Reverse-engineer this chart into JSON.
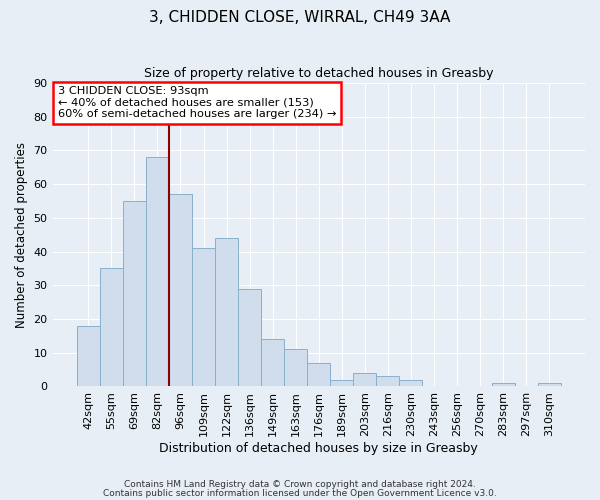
{
  "title": "3, CHIDDEN CLOSE, WIRRAL, CH49 3AA",
  "subtitle": "Size of property relative to detached houses in Greasby",
  "xlabel": "Distribution of detached houses by size in Greasby",
  "ylabel": "Number of detached properties",
  "bar_labels": [
    "42sqm",
    "55sqm",
    "69sqm",
    "82sqm",
    "96sqm",
    "109sqm",
    "122sqm",
    "136sqm",
    "149sqm",
    "163sqm",
    "176sqm",
    "189sqm",
    "203sqm",
    "216sqm",
    "230sqm",
    "243sqm",
    "256sqm",
    "270sqm",
    "283sqm",
    "297sqm",
    "310sqm"
  ],
  "bar_values": [
    18,
    35,
    55,
    68,
    57,
    41,
    44,
    29,
    14,
    11,
    7,
    2,
    4,
    3,
    2,
    0,
    0,
    0,
    1,
    0,
    1
  ],
  "bar_color": "#cfdded",
  "bar_edge_color": "#8ab0cc",
  "vline_x_index": 3,
  "vline_color": "#8b0000",
  "annotation_title": "3 CHIDDEN CLOSE: 93sqm",
  "annotation_line1": "← 40% of detached houses are smaller (153)",
  "annotation_line2": "60% of semi-detached houses are larger (234) →",
  "ylim": [
    0,
    90
  ],
  "yticks": [
    0,
    10,
    20,
    30,
    40,
    50,
    60,
    70,
    80,
    90
  ],
  "footer1": "Contains HM Land Registry data © Crown copyright and database right 2024.",
  "footer2": "Contains public sector information licensed under the Open Government Licence v3.0.",
  "background_color": "#e8eef5",
  "plot_bg_color": "#e8eef5",
  "grid_color": "#ffffff",
  "title_fontsize": 11,
  "subtitle_fontsize": 9
}
